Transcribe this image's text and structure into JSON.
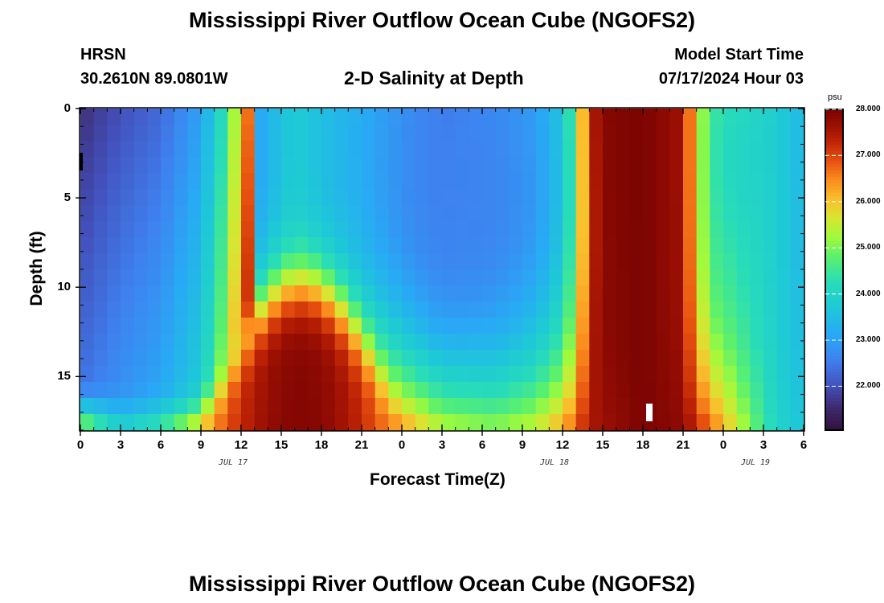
{
  "page": {
    "title": "Mississippi River Outflow Ocean Cube (NGOFS2)",
    "station": "HRSN",
    "coords": "30.2610N  89.0801W",
    "subtitle": "2-D Salinity at Depth",
    "model_start_label": "Model Start Time",
    "model_start_value": "07/17/2024 Hour 03",
    "footer_title": "Mississippi River Outflow Ocean Cube (NGOFS2)"
  },
  "chart_data": {
    "type": "heatmap",
    "title": "2-D Salinity at Depth",
    "xlabel": "Forecast Time(Z)",
    "ylabel": "Depth (ft)",
    "x_range_hours": [
      0,
      54
    ],
    "y_range_ft": [
      0,
      18
    ],
    "x_ticks": [
      {
        "hour": 0,
        "label": "0"
      },
      {
        "hour": 3,
        "label": "3"
      },
      {
        "hour": 6,
        "label": "6"
      },
      {
        "hour": 9,
        "label": "9"
      },
      {
        "hour": 12,
        "label": "12"
      },
      {
        "hour": 15,
        "label": "15"
      },
      {
        "hour": 18,
        "label": "18"
      },
      {
        "hour": 21,
        "label": "21"
      },
      {
        "hour": 24,
        "label": "0"
      },
      {
        "hour": 27,
        "label": "3"
      },
      {
        "hour": 30,
        "label": "6"
      },
      {
        "hour": 33,
        "label": "9"
      },
      {
        "hour": 36,
        "label": "12"
      },
      {
        "hour": 39,
        "label": "15"
      },
      {
        "hour": 42,
        "label": "18"
      },
      {
        "hour": 45,
        "label": "21"
      },
      {
        "hour": 48,
        "label": "0"
      },
      {
        "hour": 51,
        "label": "3"
      },
      {
        "hour": 54,
        "label": "6"
      }
    ],
    "date_labels": [
      {
        "hour": 12,
        "label": "JUL 17"
      },
      {
        "hour": 36,
        "label": "JUL 18"
      },
      {
        "hour": 51,
        "label": "JUL 19"
      }
    ],
    "y_ticks": [
      {
        "depth": 0,
        "label": "0"
      },
      {
        "depth": 5,
        "label": "5"
      },
      {
        "depth": 10,
        "label": "10"
      },
      {
        "depth": 15,
        "label": "15"
      }
    ],
    "colorbar": {
      "units": "psu",
      "min": 21.05,
      "max": 28.0,
      "ticks": [
        {
          "value": 28.0,
          "label": "28.000"
        },
        {
          "value": 27.0,
          "label": "27.000"
        },
        {
          "value": 26.0,
          "label": "26.000"
        },
        {
          "value": 25.0,
          "label": "25.000"
        },
        {
          "value": 24.0,
          "label": "24.000"
        },
        {
          "value": 23.0,
          "label": "23.000"
        },
        {
          "value": 22.0,
          "label": "22.000"
        }
      ]
    },
    "grid": {
      "time_step_hours": 1,
      "depth_levels": 20
    },
    "salinity_model": {
      "description": "Estimated salinity (psu) as a function of forecast hour t and depth d",
      "surface_profile": [
        [
          0,
          21.2
        ],
        [
          6,
          21.7
        ],
        [
          10,
          22.1
        ],
        [
          12,
          22.7
        ],
        [
          14,
          23.3
        ],
        [
          16,
          23.8
        ],
        [
          18,
          23.5
        ],
        [
          21,
          23.2
        ],
        [
          24,
          22.8
        ],
        [
          27,
          22.5
        ],
        [
          31,
          22.7
        ],
        [
          34,
          23.0
        ],
        [
          36,
          23.7
        ],
        [
          37,
          25.0
        ],
        [
          38,
          27.3
        ],
        [
          39,
          27.9
        ],
        [
          42,
          28.0
        ],
        [
          45,
          27.6
        ],
        [
          46,
          25.7
        ],
        [
          47,
          24.5
        ],
        [
          50,
          24.1
        ],
        [
          52,
          23.8
        ],
        [
          54,
          23.4
        ]
      ],
      "bottom_profile": [
        [
          0,
          25.5
        ],
        [
          3,
          24.0
        ],
        [
          6,
          24.6
        ],
        [
          9,
          26.0
        ],
        [
          12,
          27.6
        ],
        [
          15,
          27.9
        ],
        [
          18,
          27.9
        ],
        [
          21,
          27.6
        ],
        [
          24,
          26.5
        ],
        [
          27,
          25.5
        ],
        [
          31,
          25.2
        ],
        [
          34,
          25.6
        ],
        [
          36,
          26.3
        ],
        [
          38,
          27.5
        ],
        [
          42,
          28.0
        ],
        [
          45,
          27.8
        ],
        [
          47,
          26.8
        ],
        [
          50,
          25.0
        ],
        [
          52,
          24.0
        ],
        [
          54,
          23.6
        ]
      ],
      "west_lens": {
        "base": [
          [
            0,
            21.6
          ],
          [
            3,
            22.0
          ],
          [
            6,
            22.3
          ],
          [
            9,
            23.0
          ],
          [
            11,
            24.5
          ],
          [
            12,
            26.0
          ],
          [
            13,
            27.3
          ]
        ],
        "thickness_ft": 16.5
      },
      "mid_dome": {
        "center_hour": 16.5,
        "peak": 27.9,
        "top_depth_ft": 10.0,
        "half_width_hours": 6.0
      },
      "east_fresh": {
        "center_hour": 29,
        "value": 22.6,
        "depth_ft": 6,
        "half_width_hours": 5,
        "half_height_ft": 6
      }
    }
  }
}
